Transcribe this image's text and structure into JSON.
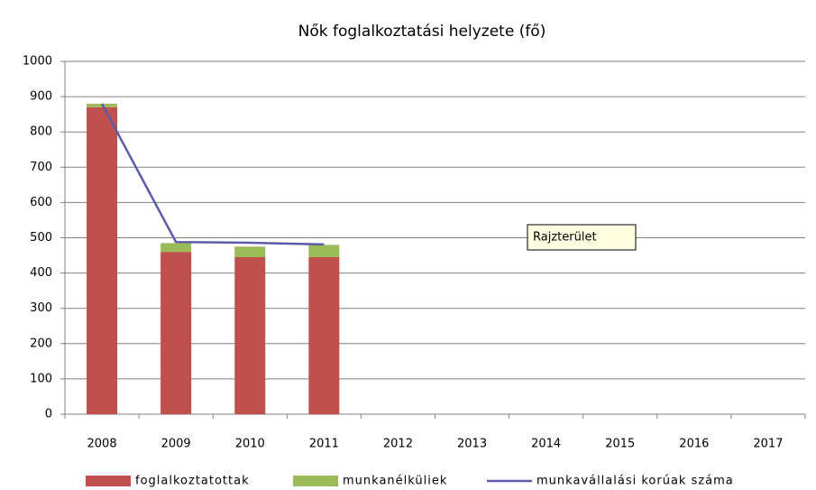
{
  "chart_data": {
    "type": "bar",
    "stacked": true,
    "title": "Nők foglalkoztatási helyzete (fő)",
    "categories": [
      "2008",
      "2009",
      "2010",
      "2011",
      "2012",
      "2013",
      "2014",
      "2015",
      "2016",
      "2017"
    ],
    "series": [
      {
        "name": "foglalkoztatottak",
        "type": "bar",
        "color": "#c0504d",
        "values": [
          870,
          460,
          445,
          445,
          null,
          null,
          null,
          null,
          null,
          null
        ]
      },
      {
        "name": "munkanélküliek",
        "type": "bar",
        "color": "#9bbb59",
        "values": [
          10,
          25,
          30,
          35,
          null,
          null,
          null,
          null,
          null,
          null
        ]
      },
      {
        "name": "munkavállalási korúak száma",
        "type": "line",
        "color": "#5b5ba8",
        "values": [
          880,
          488,
          486,
          481,
          null,
          null,
          null,
          null,
          null,
          null
        ]
      }
    ],
    "ylim": [
      0,
      1000
    ],
    "yticks": [
      0,
      100,
      200,
      300,
      400,
      500,
      600,
      700,
      800,
      900,
      1000
    ],
    "grid": true,
    "legend": "bottom",
    "annotation": "Rajzterület"
  }
}
